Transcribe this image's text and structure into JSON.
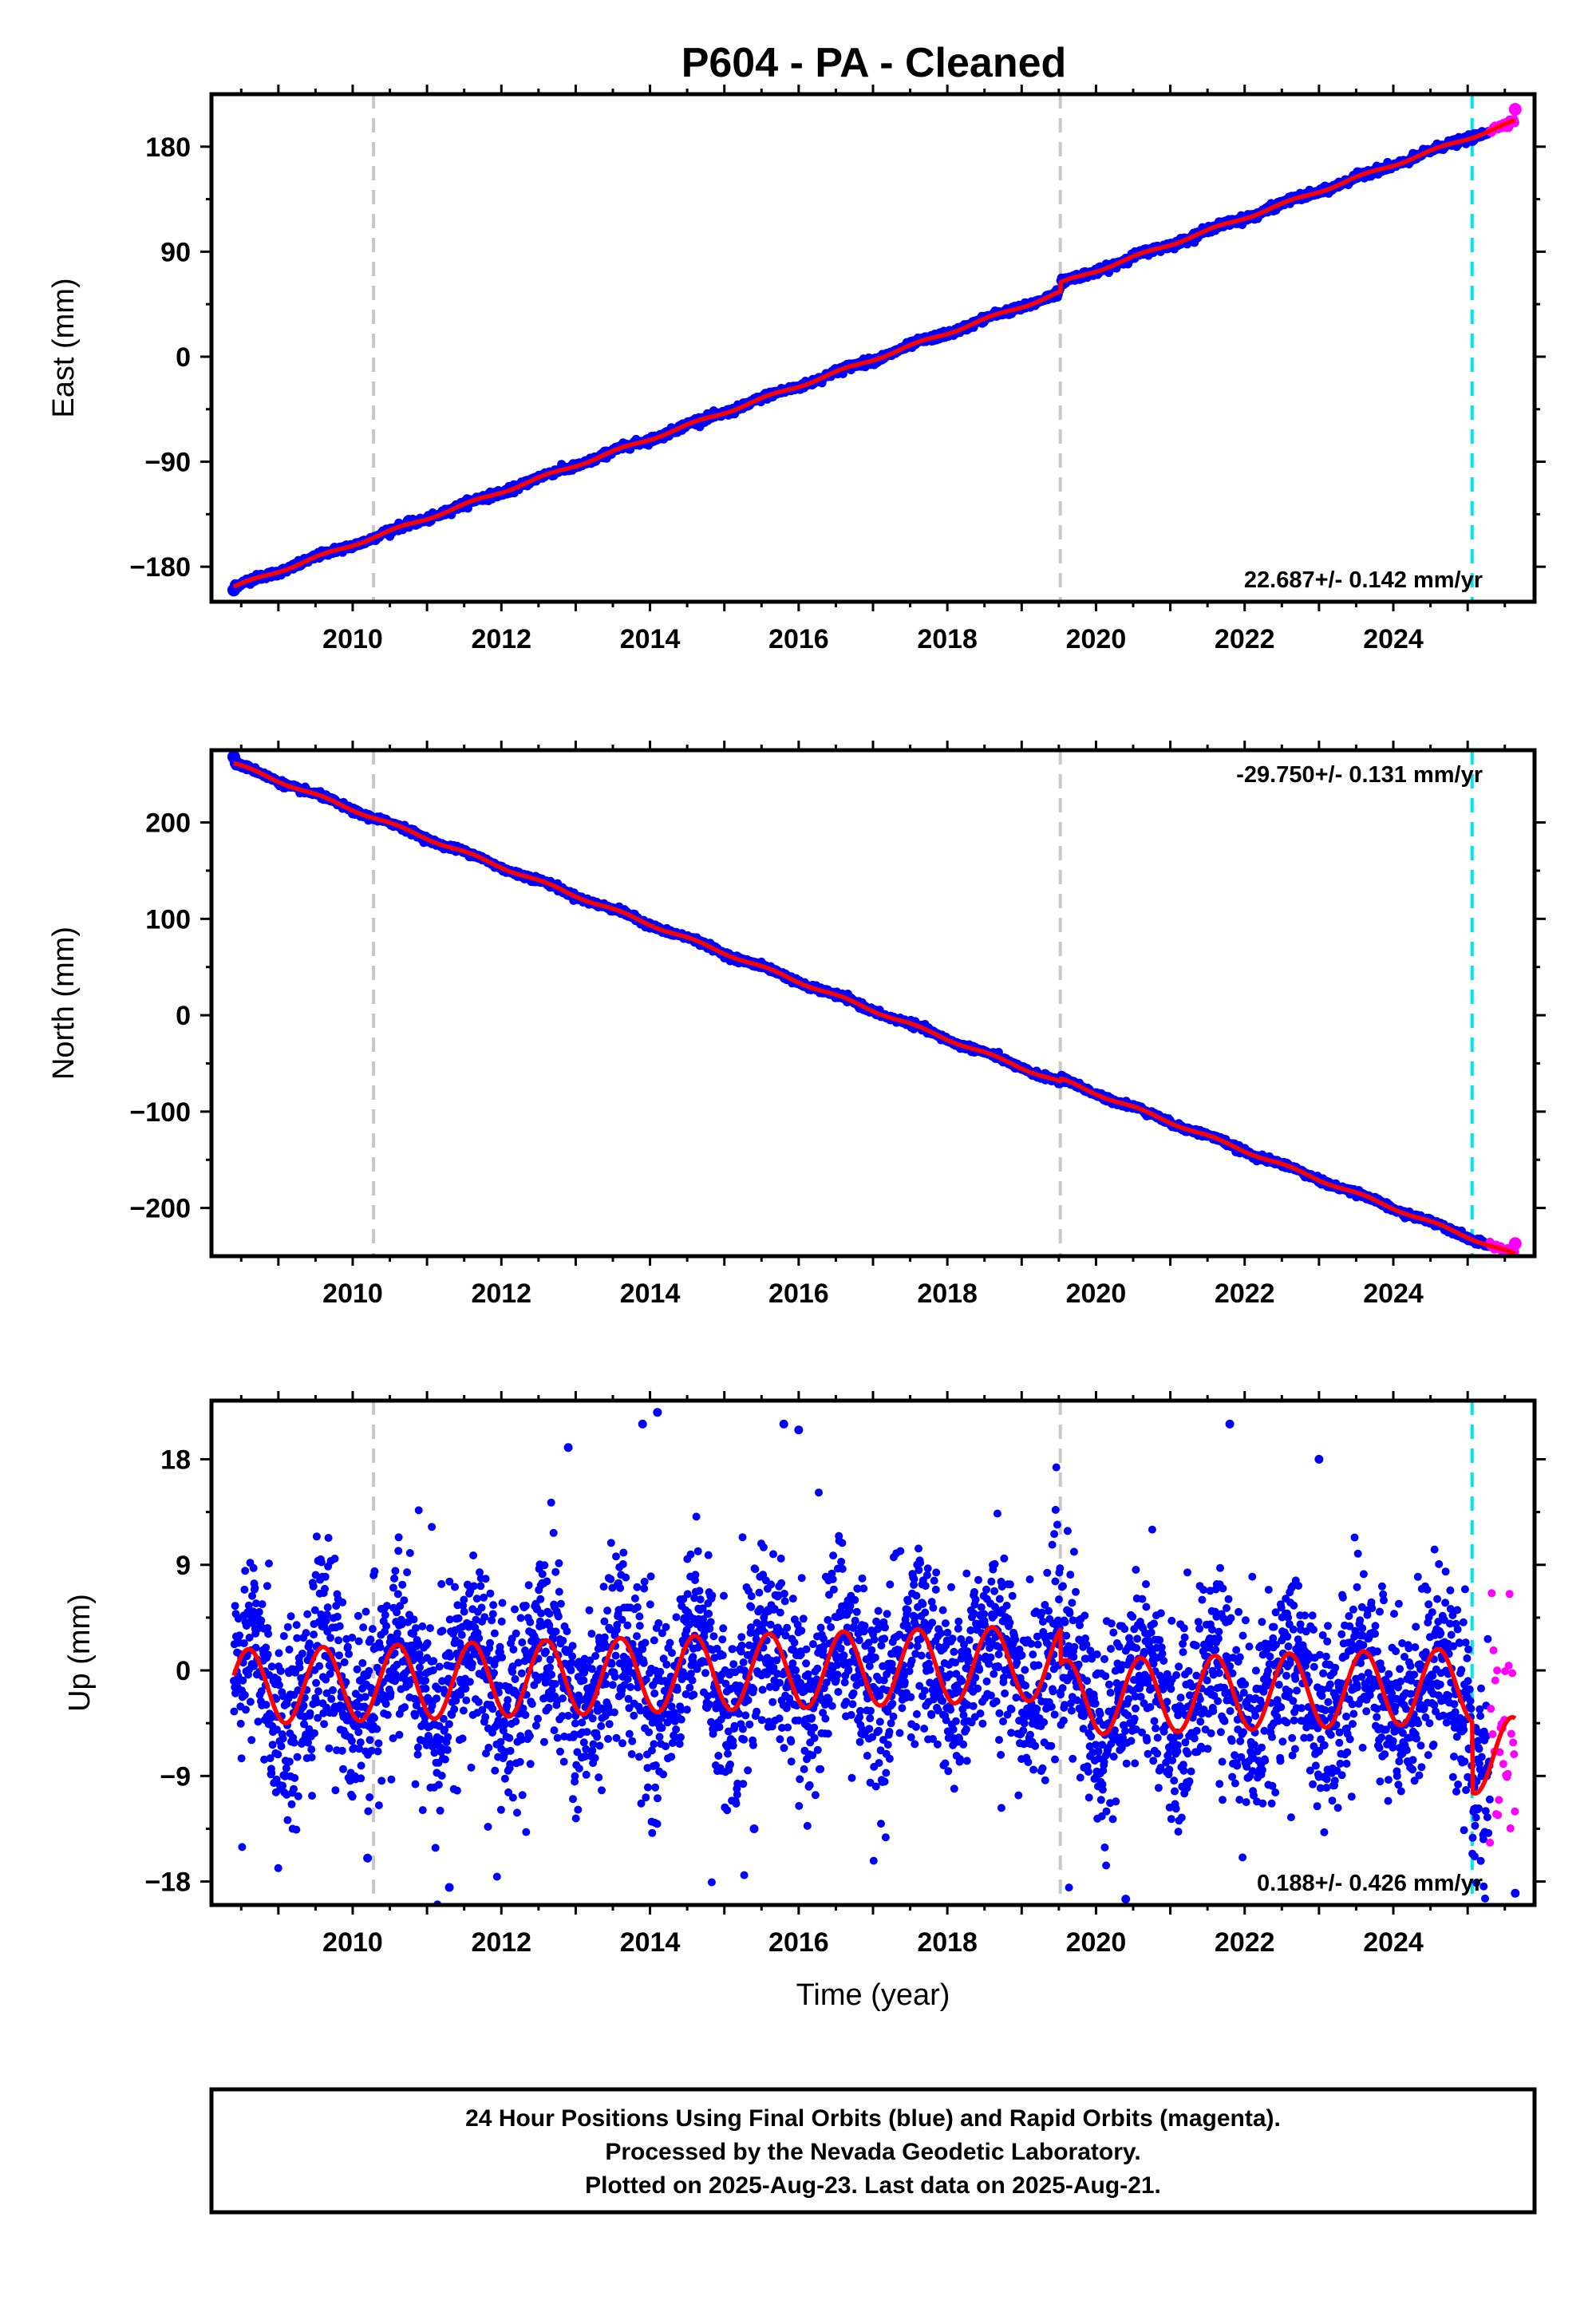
{
  "title": "P604  - PA - Cleaned",
  "colors": {
    "final_orbits": "#0000ff",
    "rapid_orbits": "#ff00ff",
    "model_fit": "#ff0000",
    "antenna_change": "#c8c8c8",
    "rapid_start": "#00e5ee"
  },
  "chart_data": [
    {
      "type": "scatter",
      "panel": "east",
      "ylabel": "East (mm)",
      "xlabel": "",
      "xlim": [
        2008.1,
        2025.9
      ],
      "ylim": [
        -210,
        225
      ],
      "xticks": [
        2010,
        2012,
        2014,
        2016,
        2018,
        2020,
        2022,
        2024
      ],
      "yticks": [
        -180,
        -90,
        0,
        90,
        180
      ],
      "grid": false,
      "rate_annotation": "22.687+/- 0.142 mm/yr",
      "vertical_lines": [
        {
          "x": 2010.28,
          "style": "dashed",
          "color": "#c8c8c8"
        },
        {
          "x": 2019.52,
          "style": "dashed",
          "color": "#c8c8c8"
        },
        {
          "x": 2025.06,
          "style": "dashed",
          "color": "#00e5ee"
        }
      ],
      "model": {
        "t0": 2016.0,
        "intercept": -25,
        "rate": 22.687,
        "annual_amp": 1.2,
        "offsets": [
          {
            "t": 2019.52,
            "size": 8
          }
        ]
      },
      "series": [
        {
          "name": "Final Orbits",
          "x_range": [
            2008.4,
            2025.3
          ],
          "noise": 1.5
        },
        {
          "name": "Rapid Orbits",
          "x_range": [
            2025.3,
            2025.64
          ],
          "noise": 1.5
        }
      ],
      "end_points": [
        {
          "x": 2008.4,
          "y": -200
        },
        {
          "x": 2025.64,
          "y": 212
        }
      ]
    },
    {
      "type": "scatter",
      "panel": "north",
      "ylabel": "North (mm)",
      "xlabel": "",
      "xlim": [
        2008.1,
        2025.9
      ],
      "ylim": [
        -250,
        275
      ],
      "xticks": [
        2010,
        2012,
        2014,
        2016,
        2018,
        2020,
        2022,
        2024
      ],
      "yticks": [
        -200,
        -100,
        0,
        100,
        200
      ],
      "grid": false,
      "rate_annotation": "-29.750+/- 0.131 mm/yr",
      "vertical_lines": [
        {
          "x": 2010.28,
          "style": "dashed",
          "color": "#c8c8c8"
        },
        {
          "x": 2019.52,
          "style": "dashed",
          "color": "#c8c8c8"
        },
        {
          "x": 2025.06,
          "style": "dashed",
          "color": "#00e5ee"
        }
      ],
      "model": {
        "t0": 2016.0,
        "intercept": 35,
        "rate": -29.75,
        "annual_amp": 1.5,
        "offsets": [
          {
            "t": 2019.52,
            "size": 3
          }
        ]
      },
      "series": [
        {
          "name": "Final Orbits",
          "x_range": [
            2008.4,
            2025.3
          ],
          "noise": 1.5
        },
        {
          "name": "Rapid Orbits",
          "x_range": [
            2025.3,
            2025.64
          ],
          "noise": 1.5
        }
      ],
      "end_points": [
        {
          "x": 2008.4,
          "y": 268
        },
        {
          "x": 2025.64,
          "y": -237
        }
      ]
    },
    {
      "type": "scatter",
      "panel": "up",
      "ylabel": "Up (mm)",
      "xlabel": "Time (year)",
      "xlim": [
        2008.1,
        2025.9
      ],
      "ylim": [
        -20,
        23
      ],
      "xticks": [
        2010,
        2012,
        2014,
        2016,
        2018,
        2020,
        2022,
        2024
      ],
      "yticks": [
        -18,
        -9,
        0,
        9,
        18
      ],
      "grid": false,
      "rate_annotation": "0.188+/- 0.426 mm/yr",
      "vertical_lines": [
        {
          "x": 2010.28,
          "style": "dashed",
          "color": "#c8c8c8"
        },
        {
          "x": 2019.52,
          "style": "dashed",
          "color": "#c8c8c8"
        },
        {
          "x": 2025.06,
          "style": "dashed",
          "color": "#00e5ee"
        }
      ],
      "model": {
        "t0": 2016.0,
        "intercept": 0,
        "rate": 0.188,
        "annual_amp": 3.2,
        "offsets": [
          {
            "t": 2019.52,
            "size": -3
          },
          {
            "t": 2025.06,
            "size": -6
          }
        ]
      },
      "series": [
        {
          "name": "Final Orbits",
          "x_range": [
            2008.4,
            2025.3
          ],
          "noise": 3.8
        },
        {
          "name": "Rapid Orbits",
          "x_range": [
            2025.3,
            2025.64
          ],
          "noise": 4.5
        }
      ],
      "outliers": [
        {
          "x": 2014.1,
          "y": 22
        },
        {
          "x": 2013.9,
          "y": 21
        },
        {
          "x": 2015.8,
          "y": 21
        },
        {
          "x": 2016.0,
          "y": 20.5
        },
        {
          "x": 2021.8,
          "y": 21
        },
        {
          "x": 2012.9,
          "y": 19
        },
        {
          "x": 2011.3,
          "y": -18.5
        },
        {
          "x": 2020.4,
          "y": -19.5
        },
        {
          "x": 2010.2,
          "y": -16
        },
        {
          "x": 2015.4,
          "y": -13.5
        },
        {
          "x": 2023.0,
          "y": 18
        },
        {
          "x": 2025.64,
          "y": -19
        }
      ]
    }
  ],
  "footer": {
    "line1": "24 Hour Positions Using Final Orbits (blue) and Rapid Orbits (magenta).",
    "line2": "Processed by the Nevada Geodetic Laboratory.",
    "line3": "Plotted on 2025-Aug-23. Last data on 2025-Aug-21."
  }
}
